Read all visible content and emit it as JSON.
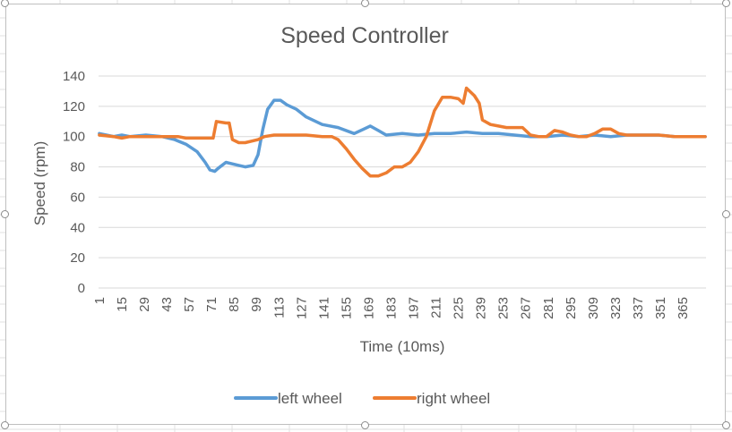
{
  "chart_data": {
    "type": "line",
    "title": "Speed Controller",
    "xlabel": "Time (10ms)",
    "ylabel": "Speed (rpm)",
    "ylim": [
      0,
      140
    ],
    "yticks": [
      0,
      20,
      40,
      60,
      80,
      100,
      120,
      140
    ],
    "x_range": [
      1,
      379
    ],
    "xtick_labels": [
      "1",
      "15",
      "29",
      "43",
      "57",
      "71",
      "85",
      "99",
      "113",
      "127",
      "141",
      "155",
      "169",
      "183",
      "197",
      "211",
      "225",
      "239",
      "253",
      "267",
      "281",
      "295",
      "309",
      "323",
      "337",
      "351",
      "365"
    ],
    "grid": "horizontal",
    "legend_position": "bottom",
    "series": [
      {
        "name": "left wheel",
        "color": "#5B9BD5",
        "points": [
          [
            1,
            102
          ],
          [
            10,
            100
          ],
          [
            15,
            101
          ],
          [
            20,
            100
          ],
          [
            30,
            101
          ],
          [
            40,
            100
          ],
          [
            48,
            98
          ],
          [
            55,
            95
          ],
          [
            62,
            90
          ],
          [
            67,
            83
          ],
          [
            70,
            78
          ],
          [
            73,
            77
          ],
          [
            75,
            79
          ],
          [
            80,
            83
          ],
          [
            88,
            81
          ],
          [
            92,
            80
          ],
          [
            97,
            81
          ],
          [
            100,
            88
          ],
          [
            103,
            105
          ],
          [
            106,
            118
          ],
          [
            110,
            124
          ],
          [
            114,
            124
          ],
          [
            118,
            121
          ],
          [
            124,
            118
          ],
          [
            130,
            113
          ],
          [
            140,
            108
          ],
          [
            150,
            106
          ],
          [
            160,
            102
          ],
          [
            166,
            105
          ],
          [
            170,
            107
          ],
          [
            175,
            104
          ],
          [
            180,
            101
          ],
          [
            190,
            102
          ],
          [
            200,
            101
          ],
          [
            210,
            102
          ],
          [
            220,
            102
          ],
          [
            230,
            103
          ],
          [
            240,
            102
          ],
          [
            250,
            102
          ],
          [
            260,
            101
          ],
          [
            270,
            100
          ],
          [
            280,
            100
          ],
          [
            290,
            101
          ],
          [
            300,
            100
          ],
          [
            310,
            101
          ],
          [
            320,
            100
          ],
          [
            330,
            101
          ],
          [
            340,
            101
          ],
          [
            350,
            101
          ],
          [
            360,
            100
          ],
          [
            370,
            100
          ],
          [
            379,
            100
          ]
        ]
      },
      {
        "name": "right wheel",
        "color": "#ED7D31",
        "points": [
          [
            1,
            101
          ],
          [
            10,
            100
          ],
          [
            15,
            99
          ],
          [
            20,
            100
          ],
          [
            30,
            100
          ],
          [
            40,
            100
          ],
          [
            50,
            100
          ],
          [
            55,
            99
          ],
          [
            60,
            99
          ],
          [
            65,
            99
          ],
          [
            70,
            99
          ],
          [
            72,
            99
          ],
          [
            74,
            110
          ],
          [
            80,
            109
          ],
          [
            82,
            109
          ],
          [
            84,
            98
          ],
          [
            88,
            96
          ],
          [
            92,
            96
          ],
          [
            96,
            97
          ],
          [
            100,
            98
          ],
          [
            104,
            100
          ],
          [
            110,
            101
          ],
          [
            120,
            101
          ],
          [
            130,
            101
          ],
          [
            140,
            100
          ],
          [
            146,
            100
          ],
          [
            150,
            98
          ],
          [
            155,
            92
          ],
          [
            160,
            85
          ],
          [
            165,
            79
          ],
          [
            170,
            74
          ],
          [
            175,
            74
          ],
          [
            180,
            76
          ],
          [
            185,
            80
          ],
          [
            190,
            80
          ],
          [
            195,
            83
          ],
          [
            200,
            90
          ],
          [
            205,
            100
          ],
          [
            210,
            117
          ],
          [
            215,
            126
          ],
          [
            220,
            126
          ],
          [
            225,
            125
          ],
          [
            228,
            122
          ],
          [
            230,
            132
          ],
          [
            235,
            127
          ],
          [
            238,
            122
          ],
          [
            240,
            111
          ],
          [
            245,
            108
          ],
          [
            250,
            107
          ],
          [
            255,
            106
          ],
          [
            260,
            106
          ],
          [
            265,
            106
          ],
          [
            270,
            101
          ],
          [
            275,
            100
          ],
          [
            280,
            100
          ],
          [
            285,
            104
          ],
          [
            290,
            103
          ],
          [
            295,
            101
          ],
          [
            300,
            100
          ],
          [
            305,
            100
          ],
          [
            310,
            102
          ],
          [
            315,
            105
          ],
          [
            320,
            105
          ],
          [
            325,
            102
          ],
          [
            330,
            101
          ],
          [
            340,
            101
          ],
          [
            350,
            101
          ],
          [
            360,
            100
          ],
          [
            370,
            100
          ],
          [
            379,
            100
          ]
        ]
      }
    ]
  }
}
